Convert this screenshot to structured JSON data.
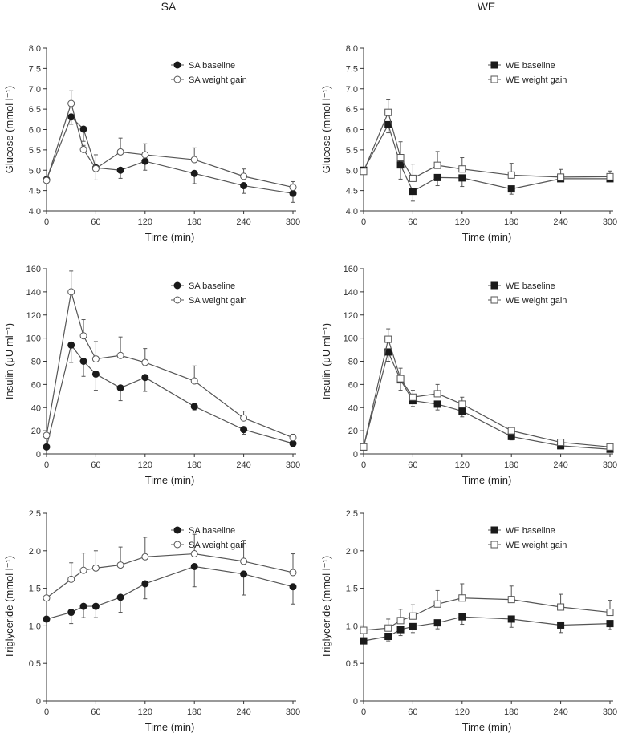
{
  "columns": [
    "SA",
    "WE"
  ],
  "chart_data": [
    {
      "type": "line",
      "group": "SA",
      "ylabel": "Glucose (mmol l⁻¹)",
      "xlabel": "Time (min)",
      "ylim": [
        4.0,
        8.0
      ],
      "yticks": [
        "4.0",
        "4.5",
        "5.0",
        "5.5",
        "6.0",
        "6.5",
        "7.0",
        "7.5",
        "8.0"
      ],
      "xticks": [
        "0",
        "60",
        "120",
        "180",
        "240",
        "300"
      ],
      "x": [
        0,
        30,
        45,
        60,
        90,
        120,
        180,
        240,
        300
      ],
      "marker": "circle",
      "series": [
        {
          "name": "SA baseline",
          "filled": true,
          "values": [
            4.77,
            6.31,
            6.01,
            5.06,
            5.0,
            5.22,
            4.92,
            4.62,
            4.43
          ],
          "err": [
            0,
            0.18,
            0.3,
            0.3,
            0.2,
            0.22,
            0.25,
            0.19,
            0.22
          ],
          "errdir": -1
        },
        {
          "name": "SA weight gain",
          "filled": false,
          "values": [
            4.75,
            6.64,
            5.51,
            5.04,
            5.45,
            5.38,
            5.26,
            4.85,
            4.58
          ],
          "err": [
            0,
            0.31,
            0.1,
            0.34,
            0.34,
            0.27,
            0.29,
            0.18,
            0.14
          ],
          "errdir": 1
        }
      ]
    },
    {
      "type": "line",
      "group": "WE",
      "ylabel": "Glucose (mmol l⁻¹)",
      "xlabel": "Time (min)",
      "ylim": [
        4.0,
        8.0
      ],
      "yticks": [
        "4.0",
        "4.5",
        "5.0",
        "5.5",
        "6.0",
        "6.5",
        "7.0",
        "7.5",
        "8.0"
      ],
      "xticks": [
        "0",
        "60",
        "120",
        "180",
        "240",
        "300"
      ],
      "x": [
        0,
        30,
        45,
        60,
        90,
        120,
        180,
        240,
        300
      ],
      "marker": "square",
      "series": [
        {
          "name": "WE baseline",
          "filled": true,
          "values": [
            5.0,
            6.12,
            5.13,
            4.48,
            4.82,
            4.81,
            4.54,
            4.79,
            4.79
          ],
          "err": [
            0,
            0.2,
            0.35,
            0.24,
            0.2,
            0.21,
            0.13,
            0.05,
            0.05
          ],
          "errdir": -1
        },
        {
          "name": "WE weight gain",
          "filled": false,
          "values": [
            4.97,
            6.42,
            5.31,
            4.8,
            5.12,
            5.03,
            4.88,
            4.83,
            4.84
          ],
          "err": [
            0,
            0.31,
            0.39,
            0.35,
            0.34,
            0.28,
            0.29,
            0.19,
            0.14
          ],
          "errdir": 1
        }
      ]
    },
    {
      "type": "line",
      "group": "SA",
      "ylabel": "Insulin (μU ml⁻¹)",
      "xlabel": "Time (min)",
      "ylim": [
        0,
        160
      ],
      "yticks": [
        "0",
        "20",
        "40",
        "60",
        "80",
        "100",
        "120",
        "140",
        "160"
      ],
      "xticks": [
        "0",
        "60",
        "120",
        "180",
        "240",
        "300"
      ],
      "x": [
        0,
        30,
        45,
        60,
        90,
        120,
        180,
        240,
        300
      ],
      "marker": "circle",
      "series": [
        {
          "name": "SA baseline",
          "filled": true,
          "values": [
            6,
            94,
            80,
            69,
            57,
            66,
            41,
            21,
            9
          ],
          "err": [
            0,
            15,
            13,
            14,
            11,
            12,
            3,
            4,
            2
          ],
          "errdir": -1
        },
        {
          "name": "SA weight gain",
          "filled": false,
          "values": [
            16,
            140,
            102,
            82,
            85,
            79,
            63,
            31,
            14
          ],
          "err": [
            0,
            18,
            14,
            15,
            16,
            12,
            13,
            6,
            3
          ],
          "errdir": 1
        }
      ]
    },
    {
      "type": "line",
      "group": "WE",
      "ylabel": "Insulin (μU ml⁻¹)",
      "xlabel": "Time (min)",
      "ylim": [
        0,
        160
      ],
      "yticks": [
        "0",
        "20",
        "40",
        "60",
        "80",
        "100",
        "120",
        "140",
        "160"
      ],
      "xticks": [
        "0",
        "60",
        "120",
        "180",
        "240",
        "300"
      ],
      "x": [
        0,
        30,
        45,
        60,
        90,
        120,
        180,
        240,
        300
      ],
      "marker": "square",
      "series": [
        {
          "name": "WE baseline",
          "filled": true,
          "values": [
            6,
            88,
            64,
            46,
            43,
            37,
            15,
            7,
            4
          ],
          "err": [
            0,
            8,
            9,
            5,
            5,
            5,
            3,
            2,
            1
          ],
          "errdir": -1
        },
        {
          "name": "WE weight gain",
          "filled": false,
          "values": [
            6,
            99,
            65,
            49,
            52,
            43,
            20,
            10,
            6
          ],
          "err": [
            0,
            9,
            9,
            6,
            8,
            6,
            3,
            2,
            1
          ],
          "errdir": 1
        }
      ]
    },
    {
      "type": "line",
      "group": "SA",
      "ylabel": "Triglyceride (mmol l⁻¹)",
      "xlabel": "Time (min)",
      "ylim": [
        0,
        2.5
      ],
      "yticks": [
        "0",
        "0.5",
        "1.0",
        "1.5",
        "2.0",
        "2.5"
      ],
      "xticks": [
        "0",
        "60",
        "120",
        "180",
        "240",
        "300"
      ],
      "x": [
        0,
        30,
        45,
        60,
        90,
        120,
        180,
        240,
        300
      ],
      "marker": "circle",
      "series": [
        {
          "name": "SA baseline",
          "filled": true,
          "values": [
            1.09,
            1.18,
            1.26,
            1.26,
            1.38,
            1.56,
            1.79,
            1.69,
            1.52
          ],
          "err": [
            0,
            0.15,
            0.15,
            0.15,
            0.2,
            0.2,
            0.27,
            0.28,
            0.23
          ],
          "errdir": -1
        },
        {
          "name": "SA weight gain",
          "filled": false,
          "values": [
            1.37,
            1.62,
            1.74,
            1.77,
            1.81,
            1.92,
            1.96,
            1.86,
            1.71
          ],
          "err": [
            0,
            0.22,
            0.23,
            0.23,
            0.24,
            0.26,
            0.26,
            0.28,
            0.25
          ],
          "errdir": 1
        }
      ]
    },
    {
      "type": "line",
      "group": "WE",
      "ylabel": "Triglyceride (mmol l⁻¹)",
      "xlabel": "Time (min)",
      "ylim": [
        0,
        2.5
      ],
      "yticks": [
        "0",
        "0.5",
        "1.0",
        "1.5",
        "2.0",
        "2.5"
      ],
      "xticks": [
        "0",
        "60",
        "120",
        "180",
        "240",
        "300"
      ],
      "x": [
        0,
        30,
        45,
        60,
        90,
        120,
        180,
        240,
        300
      ],
      "marker": "square",
      "series": [
        {
          "name": "WE baseline",
          "filled": true,
          "values": [
            0.8,
            0.86,
            0.95,
            0.99,
            1.04,
            1.12,
            1.09,
            1.01,
            1.03
          ],
          "err": [
            0,
            0.06,
            0.08,
            0.08,
            0.08,
            0.1,
            0.11,
            0.1,
            0.08
          ],
          "errdir": -1
        },
        {
          "name": "WE weight gain",
          "filled": false,
          "values": [
            0.94,
            0.97,
            1.07,
            1.13,
            1.29,
            1.37,
            1.35,
            1.25,
            1.18
          ],
          "err": [
            0,
            0.12,
            0.15,
            0.15,
            0.18,
            0.19,
            0.18,
            0.17,
            0.16
          ],
          "errdir": 1
        }
      ]
    }
  ]
}
